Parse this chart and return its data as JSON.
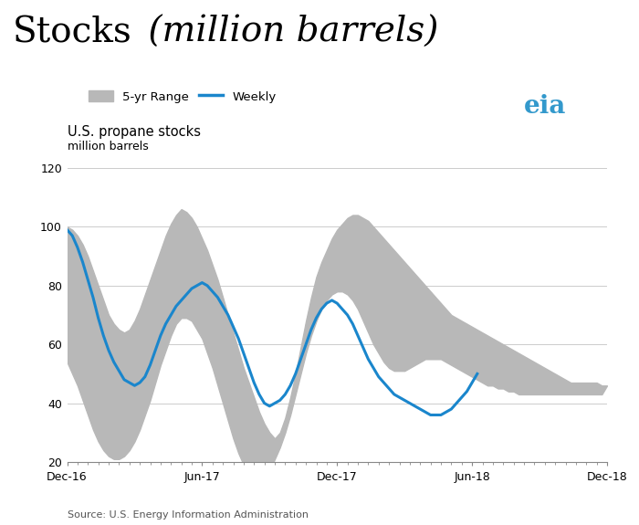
{
  "title_main": "Stocks",
  "title_italic": " (million barrels)",
  "subtitle": "U.S. propane stocks",
  "subtitle2": "million barrels",
  "source": "Source: U.S. Energy Information Administration",
  "ylim": [
    20,
    120
  ],
  "yticks": [
    20,
    40,
    60,
    80,
    100,
    120
  ],
  "xtick_labels": [
    "Dec-16",
    "Jun-17",
    "Dec-17",
    "Jun-18",
    "Dec-18"
  ],
  "xtick_positions": [
    0,
    26,
    52,
    78,
    104
  ],
  "band_color": "#b8b8b8",
  "line_color": "#1a86cc",
  "background_color": "#ffffff",
  "grid_color": "#cccccc",
  "range_upper": [
    100,
    99,
    97,
    94,
    90,
    85,
    80,
    75,
    70,
    67,
    65,
    64,
    65,
    68,
    72,
    77,
    82,
    87,
    92,
    97,
    101,
    104,
    106,
    105,
    103,
    100,
    96,
    92,
    87,
    82,
    76,
    70,
    64,
    58,
    52,
    47,
    42,
    37,
    33,
    30,
    28,
    30,
    35,
    42,
    50,
    59,
    68,
    76,
    83,
    88,
    92,
    96,
    99,
    101,
    103,
    104,
    104,
    103,
    102,
    100,
    98,
    96,
    94,
    92,
    90,
    88,
    86,
    84,
    82,
    80,
    78,
    76,
    74,
    72,
    70,
    69,
    68,
    67,
    66,
    65,
    64,
    63,
    62,
    61,
    60,
    59,
    58,
    57,
    56,
    55,
    54,
    53,
    52,
    51,
    50,
    49,
    48,
    47,
    47,
    47,
    47,
    47,
    47,
    46,
    46
  ],
  "range_lower": [
    54,
    50,
    46,
    41,
    36,
    31,
    27,
    24,
    22,
    21,
    21,
    22,
    24,
    27,
    31,
    36,
    41,
    47,
    53,
    58,
    63,
    67,
    69,
    69,
    68,
    65,
    62,
    57,
    52,
    46,
    40,
    34,
    28,
    23,
    19,
    16,
    14,
    14,
    15,
    17,
    21,
    25,
    30,
    36,
    43,
    50,
    57,
    63,
    68,
    72,
    75,
    77,
    78,
    78,
    77,
    75,
    72,
    68,
    64,
    60,
    57,
    54,
    52,
    51,
    51,
    51,
    52,
    53,
    54,
    55,
    55,
    55,
    55,
    54,
    53,
    52,
    51,
    50,
    49,
    48,
    47,
    46,
    46,
    45,
    45,
    44,
    44,
    43,
    43,
    43,
    43,
    43,
    43,
    43,
    43,
    43,
    43,
    43,
    43,
    43,
    43,
    43,
    43,
    43,
    46
  ],
  "weekly": [
    99,
    97,
    93,
    88,
    82,
    76,
    69,
    63,
    58,
    54,
    51,
    48,
    47,
    46,
    47,
    49,
    53,
    58,
    63,
    67,
    70,
    73,
    75,
    77,
    79,
    80,
    81,
    80,
    78,
    76,
    73,
    70,
    66,
    62,
    57,
    52,
    47,
    43,
    40,
    39,
    40,
    41,
    43,
    46,
    50,
    55,
    60,
    65,
    69,
    72,
    74,
    75,
    74,
    72,
    70,
    67,
    63,
    59,
    55,
    52,
    49,
    47,
    45,
    43,
    42,
    41,
    40,
    39,
    38,
    37,
    36,
    36,
    36,
    37,
    38,
    40,
    42,
    44,
    47,
    50
  ],
  "n_range": 105,
  "n_weekly": 80
}
